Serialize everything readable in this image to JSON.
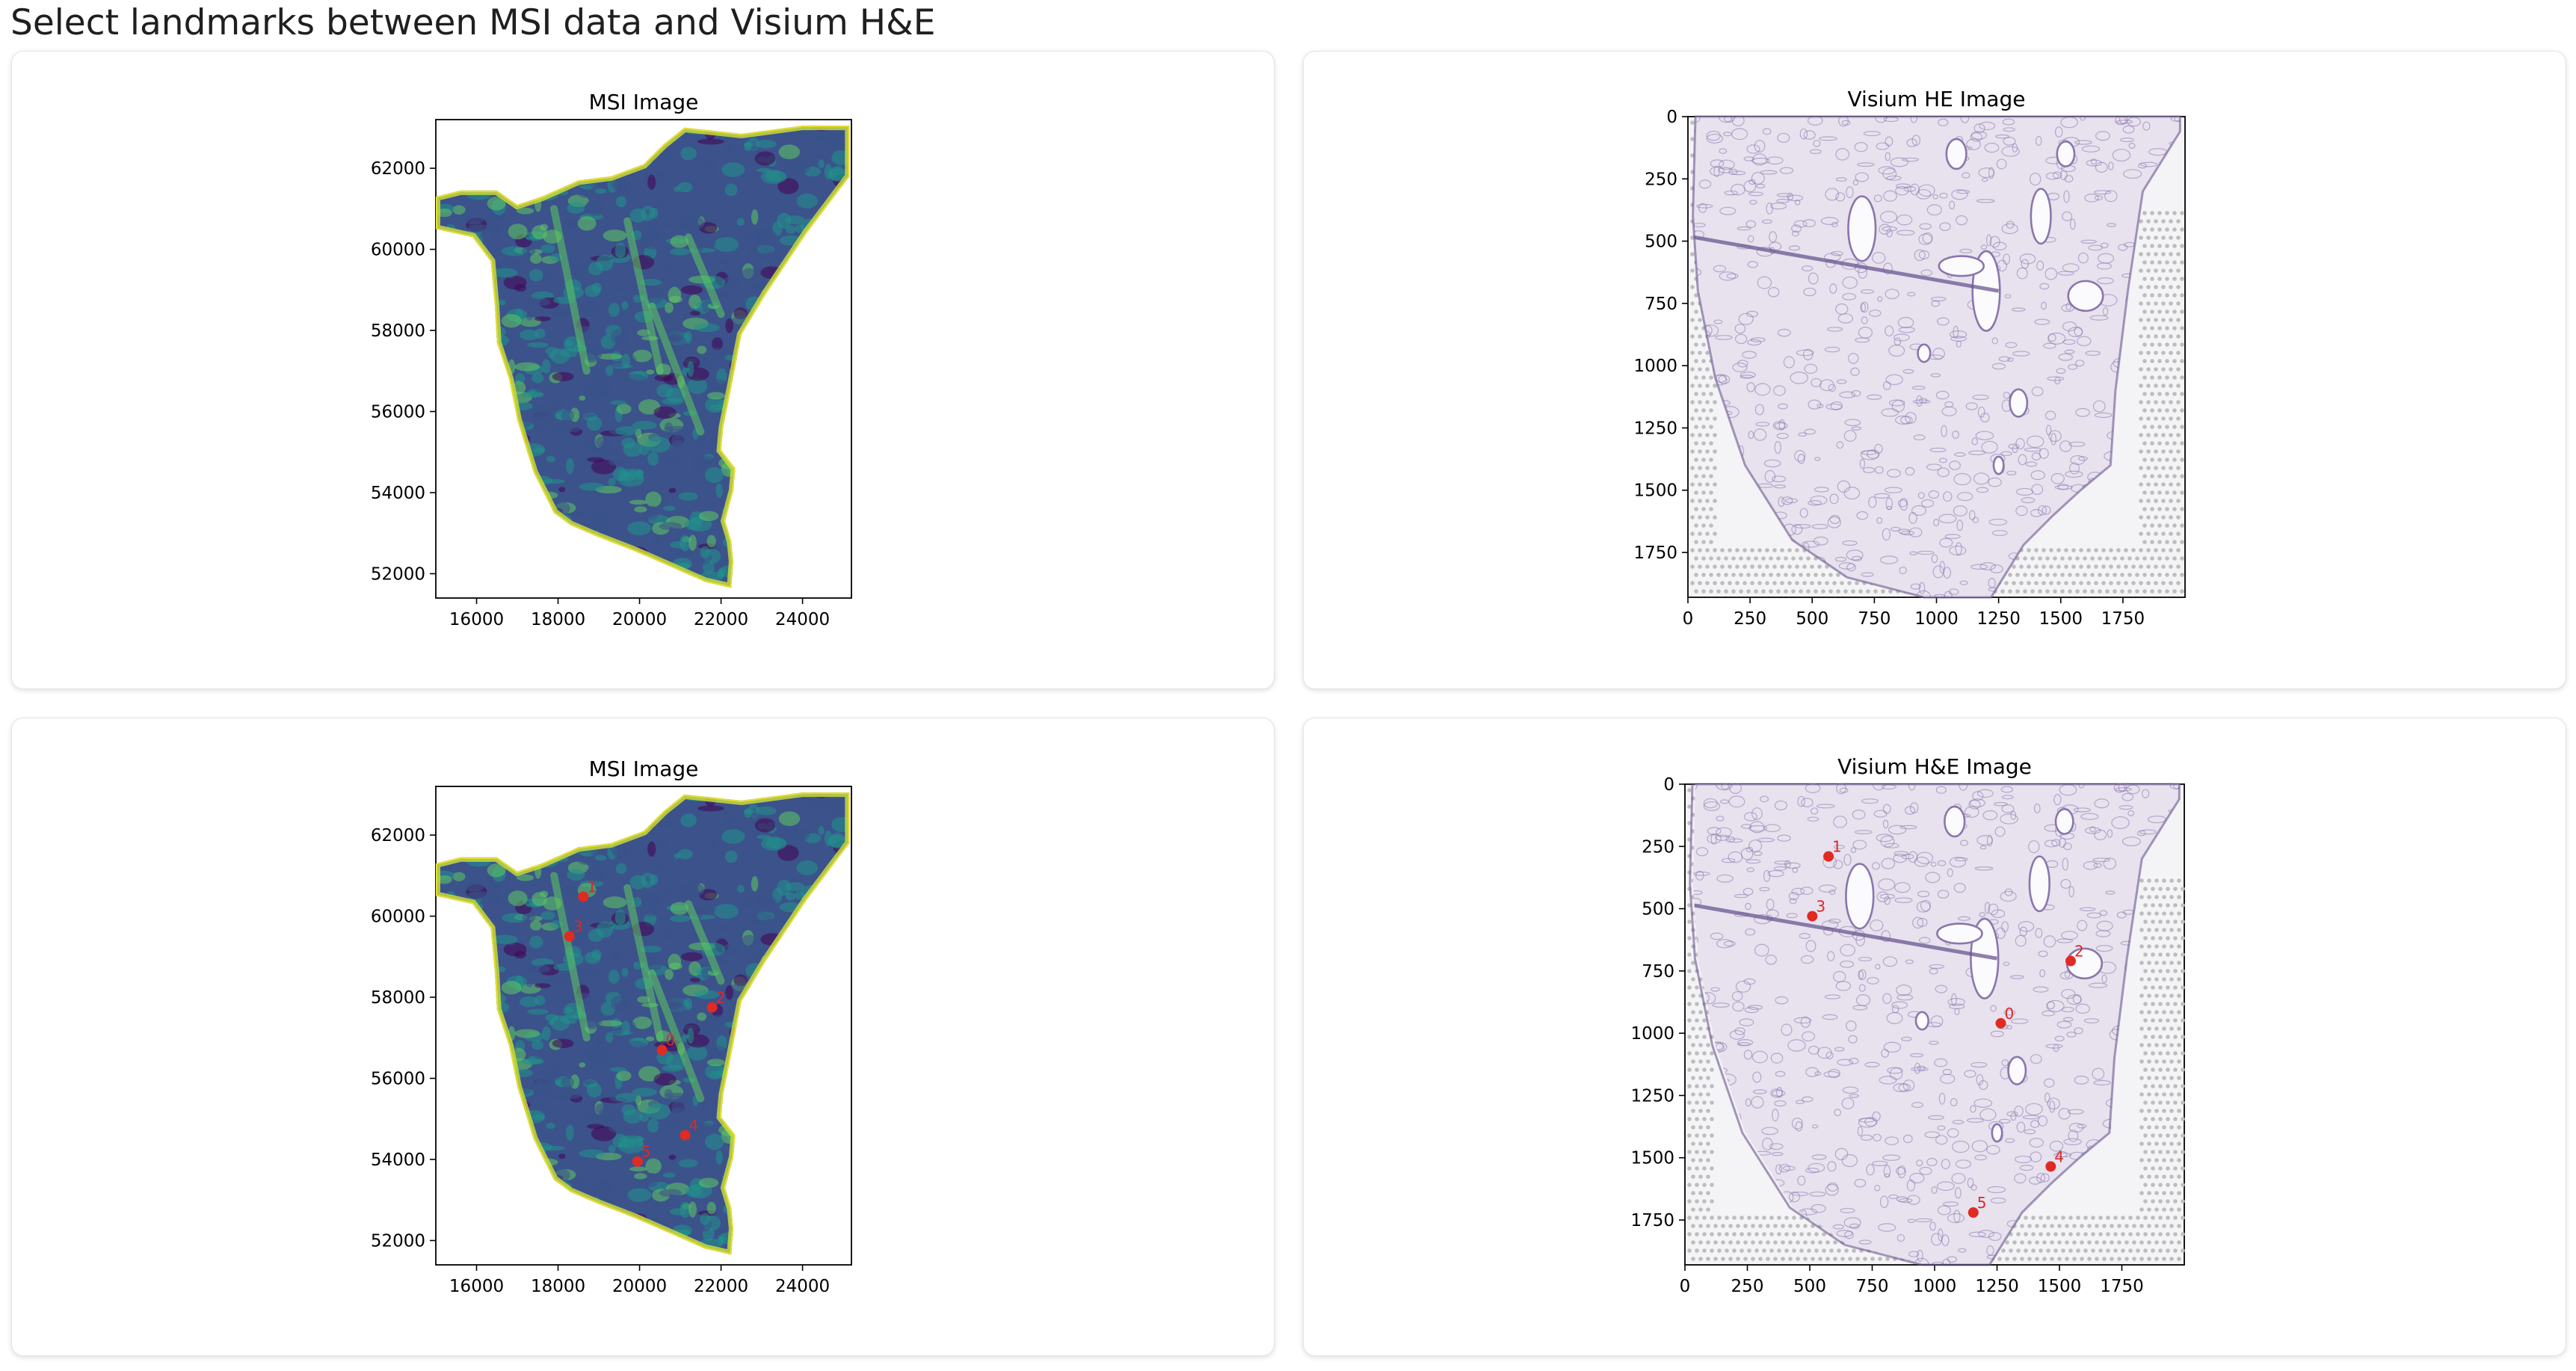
{
  "page": {
    "title": "Select landmarks between MSI data and Visium H&E"
  },
  "colors": {
    "landmark": "#e12a22",
    "viridis": [
      "#440154",
      "#3b528b",
      "#21918c",
      "#5ec962",
      "#c8d93a",
      "#fde725"
    ],
    "he_stain": "#8a76ad",
    "background": "#ffffff"
  },
  "panels": {
    "msi_top": {
      "title": "MSI Image",
      "x_ticks": [
        16000,
        18000,
        20000,
        22000,
        24000
      ],
      "y_ticks": [
        52000,
        54000,
        56000,
        58000,
        60000,
        62000
      ],
      "x_range": [
        15000,
        25200
      ],
      "y_range": [
        51400,
        63200
      ],
      "landmarks": []
    },
    "he_top": {
      "title": "Visium HE Image",
      "x_ticks": [
        0,
        250,
        500,
        750,
        1000,
        1250,
        1500,
        1750
      ],
      "y_ticks": [
        0,
        250,
        500,
        750,
        1000,
        1250,
        1500,
        1750
      ],
      "x_range": [
        0,
        2000
      ],
      "y_range": [
        0,
        1930
      ],
      "landmarks": []
    },
    "msi_bottom": {
      "title": "MSI Image",
      "x_ticks": [
        16000,
        18000,
        20000,
        22000,
        24000
      ],
      "y_ticks": [
        52000,
        54000,
        56000,
        58000,
        60000,
        62000
      ],
      "x_range": [
        15000,
        25200
      ],
      "y_range": [
        51400,
        63200
      ],
      "landmarks": [
        {
          "id": "0",
          "x": 20550,
          "y": 56700
        },
        {
          "id": "1",
          "x": 18620,
          "y": 60480
        },
        {
          "id": "2",
          "x": 21780,
          "y": 57750
        },
        {
          "id": "3",
          "x": 18280,
          "y": 59500
        },
        {
          "id": "4",
          "x": 21120,
          "y": 54600
        },
        {
          "id": "5",
          "x": 19950,
          "y": 53950
        }
      ]
    },
    "he_bottom": {
      "title": "Visium H&E Image",
      "x_ticks": [
        0,
        250,
        500,
        750,
        1000,
        1250,
        1500,
        1750
      ],
      "y_ticks": [
        0,
        250,
        500,
        750,
        1000,
        1250,
        1500,
        1750
      ],
      "x_range": [
        0,
        2000
      ],
      "y_range": [
        0,
        1930
      ],
      "landmarks": [
        {
          "id": "0",
          "x": 1265,
          "y": 960
        },
        {
          "id": "1",
          "x": 575,
          "y": 290
        },
        {
          "id": "2",
          "x": 1545,
          "y": 710
        },
        {
          "id": "3",
          "x": 510,
          "y": 530
        },
        {
          "id": "4",
          "x": 1465,
          "y": 1535
        },
        {
          "id": "5",
          "x": 1155,
          "y": 1720
        }
      ]
    }
  }
}
